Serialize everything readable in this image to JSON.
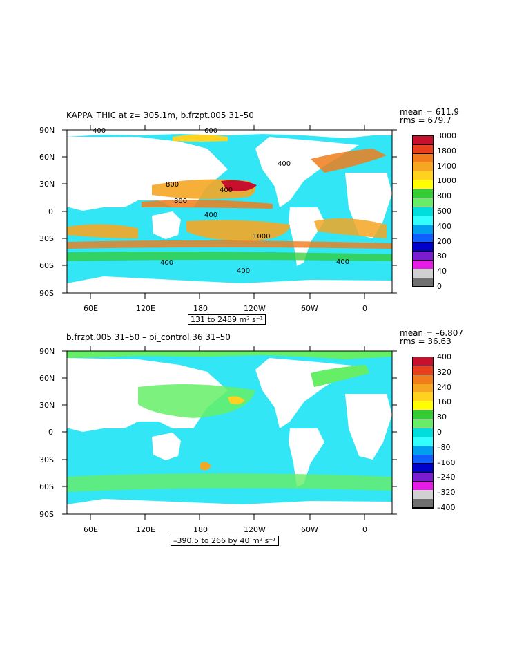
{
  "panel_top": {
    "title": "KAPPA_THIC at z= 305.1m, b.frzpt.005 31–50",
    "mean": "mean = 611.9",
    "rms": "rms = 679.7",
    "range_label": "131 to 2489 m² s⁻¹",
    "y_ticks": [
      "90N",
      "60N",
      "30N",
      "0",
      "30S",
      "60S",
      "90S"
    ],
    "x_ticks": [
      "60E",
      "120E",
      "180",
      "120W",
      "60W",
      "0"
    ],
    "colorbar_labels": [
      "3000",
      "1800",
      "1400",
      "1000",
      "800",
      "600",
      "400",
      "200",
      "80",
      "40",
      "0"
    ],
    "colorbar_colors": [
      "#c8102e",
      "#e8401c",
      "#f07c1c",
      "#f5a623",
      "#ffd21f",
      "#ffff00",
      "#33cc33",
      "#66ee66",
      "#00dddd",
      "#33ffff",
      "#00a0ee",
      "#1060ff",
      "#0000cc",
      "#7a1ccf",
      "#e61ce6",
      "#d0d0d0",
      "#707070"
    ],
    "contour_labels": [
      "400",
      "600",
      "800",
      "1000",
      "400",
      "400",
      "800",
      "400",
      "400",
      "400",
      "400"
    ]
  },
  "panel_bottom": {
    "title": "b.frzpt.005 31–50 – pi_control.36 31–50",
    "mean": "mean = –6.807",
    "rms": "rms = 36.63",
    "range_label": "–390.5 to 266 by 40 m² s⁻¹",
    "y_ticks": [
      "90N",
      "60N",
      "30N",
      "0",
      "30S",
      "60S",
      "90S"
    ],
    "x_ticks": [
      "60E",
      "120E",
      "180",
      "120W",
      "60W",
      "0"
    ],
    "colorbar_labels": [
      "400",
      "320",
      "240",
      "160",
      "80",
      "0",
      "–80",
      "–160",
      "–240",
      "–320",
      "–400"
    ],
    "colorbar_colors": [
      "#c8102e",
      "#e8401c",
      "#f07c1c",
      "#f5a623",
      "#ffd21f",
      "#ffff00",
      "#33cc33",
      "#66ee66",
      "#00dddd",
      "#33ffff",
      "#00a0ee",
      "#1060ff",
      "#0000cc",
      "#7a1ccf",
      "#e61ce6",
      "#d0d0d0",
      "#707070"
    ]
  }
}
